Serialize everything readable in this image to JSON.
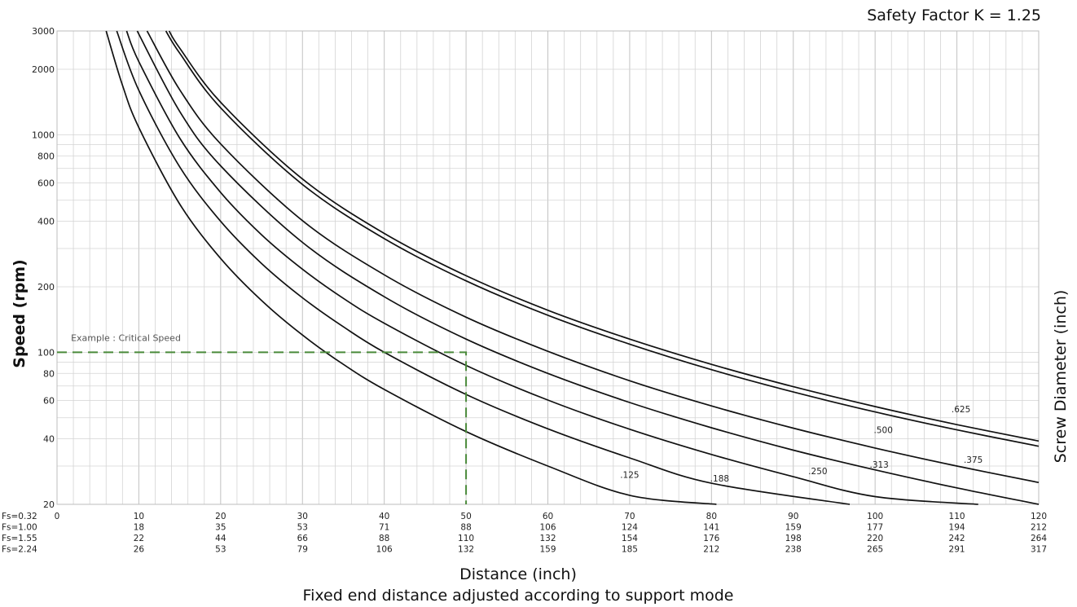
{
  "chart_data": {
    "type": "line",
    "headline": "Safety Factor K = 1.25",
    "xlabel": "Distance (inch)",
    "subtitle": "Fixed end distance adjusted according to support mode",
    "ylabel": "Speed (rpm)",
    "y2label": "Screw Diameter (inch)",
    "xlim": [
      0,
      120
    ],
    "ylim": [
      20,
      3000
    ],
    "yscale": "log",
    "grid": true,
    "yticks": [
      20,
      40,
      60,
      80,
      100,
      200,
      400,
      600,
      800,
      1000,
      2000,
      3000
    ],
    "y_tick_labels": [
      "20",
      "40",
      "60",
      "80",
      "100",
      "200",
      "400",
      "600",
      "800",
      "1000",
      "2000",
      "3000"
    ],
    "x_scales": [
      {
        "label": "Fs=0.32",
        "values": [
          "0",
          "10",
          "20",
          "30",
          "40",
          "50",
          "60",
          "70",
          "80",
          "90",
          "100",
          "110",
          "120"
        ]
      },
      {
        "label": "Fs=1.00",
        "values": [
          "",
          "18",
          "35",
          "53",
          "71",
          "88",
          "106",
          "124",
          "141",
          "159",
          "177",
          "194",
          "212"
        ]
      },
      {
        "label": "Fs=1.55",
        "values": [
          "",
          "22",
          "44",
          "66",
          "88",
          "110",
          "132",
          "154",
          "176",
          "198",
          "220",
          "242",
          "264"
        ]
      },
      {
        "label": "Fs=2.24",
        "values": [
          "",
          "26",
          "53",
          "79",
          "106",
          "132",
          "159",
          "185",
          "212",
          "238",
          "265",
          "291",
          "317"
        ]
      }
    ],
    "x_ticks": [
      0,
      10,
      20,
      30,
      40,
      50,
      60,
      70,
      80,
      90,
      100,
      110,
      120
    ],
    "series": [
      {
        "name": ".125",
        "x": [
          6,
          8,
          10,
          15,
          20,
          25,
          30,
          35,
          40,
          50,
          60,
          70,
          80.6
        ],
        "y": [
          3000,
          1690,
          1080,
          480,
          270,
          173,
          120,
          88,
          67.5,
          43.2,
          30,
          22,
          20
        ]
      },
      {
        "name": ".188",
        "x": [
          7.3,
          10,
          15,
          20,
          25,
          30,
          35,
          40,
          50,
          60,
          70,
          80,
          96.9
        ],
        "y": [
          3000,
          1600,
          712,
          400,
          256,
          178,
          131,
          100,
          64,
          44.5,
          32.7,
          25,
          20
        ]
      },
      {
        "name": ".250",
        "x": [
          8.5,
          10,
          15,
          20,
          25,
          30,
          35,
          40,
          50,
          60,
          70,
          80,
          90,
          100,
          112.6
        ],
        "y": [
          3000,
          2170,
          965,
          543,
          347,
          241,
          177,
          136,
          87,
          60.3,
          44.3,
          33.9,
          26.8,
          21.7,
          20
        ]
      },
      {
        "name": ".313",
        "x": [
          9.8,
          15,
          20,
          30,
          40,
          50,
          60,
          70,
          80,
          90,
          100,
          110,
          120
        ],
        "y": [
          3000,
          1280,
          720,
          320,
          180,
          115,
          80,
          58.8,
          45,
          35.5,
          28.8,
          23.8,
          20
        ]
      },
      {
        "name": ".375",
        "x": [
          11,
          15,
          20,
          30,
          40,
          50,
          60,
          70,
          80,
          90,
          100,
          110,
          120
        ],
        "y": [
          3000,
          1610,
          908,
          403,
          227,
          145,
          101,
          74,
          56.7,
          44.8,
          36.3,
          30,
          25.2
        ]
      },
      {
        "name": ".500",
        "x": [
          13.3,
          15,
          20,
          30,
          40,
          50,
          60,
          70,
          80,
          90,
          100,
          110,
          120
        ],
        "y": [
          3000,
          2370,
          1330,
          591,
          333,
          213,
          148,
          109,
          83.2,
          65.7,
          53.2,
          44,
          37
        ]
      },
      {
        "name": ".625",
        "x": [
          13.7,
          15,
          20,
          30,
          40,
          50,
          60,
          70,
          80,
          90,
          100,
          110,
          120
        ],
        "y": [
          3000,
          2500,
          1410,
          626,
          352,
          225,
          156,
          115,
          88,
          69.5,
          56.3,
          46.5,
          39.1
        ]
      }
    ],
    "annotation": {
      "text": "Example : Critical Speed",
      "x": 50,
      "y": 100
    },
    "colors": {
      "curve": "#111111",
      "example": "#4a8a3a",
      "grid": "#d4d4d4"
    }
  }
}
